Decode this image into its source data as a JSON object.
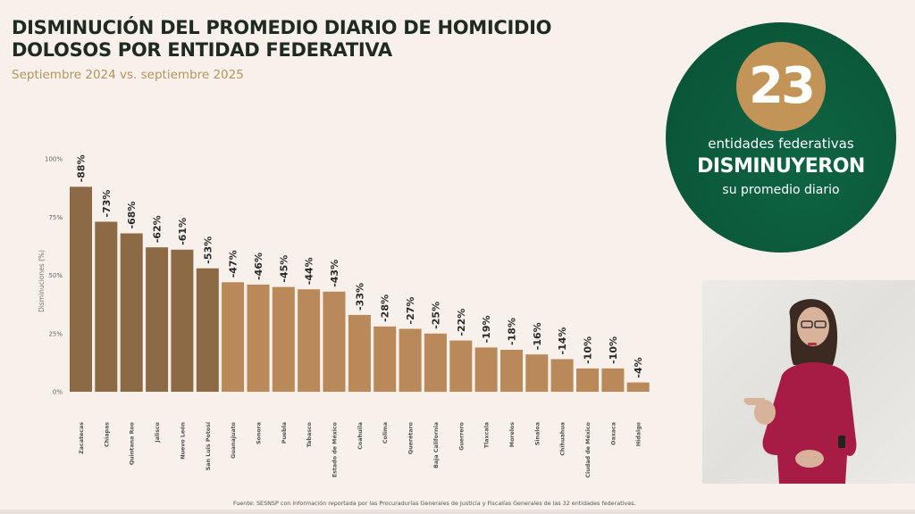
{
  "header": {
    "title": "DISMINUCIÓN DEL PROMEDIO DIARIO DE HOMICIDIO DOLOSOS POR ENTIDAD FEDERATIVA",
    "subtitle": "Septiembre 2024 vs. septiembre 2025"
  },
  "badge": {
    "number": "23",
    "line1": "entidades federativas",
    "line2": "DISMINUYERON",
    "line3": "su promedio diario"
  },
  "video": {
    "icon": "sign-language-interpreter"
  },
  "source": "Fuente: SESNSP con información reportada por las Procuradurías Generales de Justicia y Fiscalías Generales de las 32 entidades federativas.",
  "colors": {
    "dark_bar": "#8c6a45",
    "light_bar": "#b9895a",
    "badge_green": "#0b5a3b",
    "badge_gold": "#c29457",
    "title": "#1f2a22",
    "subtitle": "#b4955f"
  },
  "chart_data": {
    "type": "bar",
    "title": "",
    "xlabel": "",
    "ylabel": "Disminuciones (%)",
    "ylim": [
      0,
      100
    ],
    "yticks": [
      "0%",
      "25%",
      "50%",
      "75%",
      "100%"
    ],
    "ytick_values": [
      0,
      25,
      50,
      75,
      100
    ],
    "grid": false,
    "highlight_count": 6,
    "categories": [
      "Zacatecas",
      "Chiapas",
      "Quintana Roo",
      "Jalisco",
      "Nuevo León",
      "San Luis Potosí",
      "Guanajuato",
      "Sonora",
      "Puebla",
      "Tabasco",
      "Estado de México",
      "Coahuila",
      "Colima",
      "Querétaro",
      "Baja California",
      "Guerrero",
      "Tlaxcala",
      "Morelos",
      "Sinaloa",
      "Chihuahua",
      "Ciudad de México",
      "Oaxaca",
      "Hidalgo"
    ],
    "values": [
      88,
      73,
      68,
      62,
      61,
      53,
      47,
      46,
      45,
      44,
      43,
      33,
      28,
      27,
      25,
      22,
      19,
      18,
      16,
      14,
      10,
      10,
      4
    ],
    "labels": [
      "-88%",
      "-73%",
      "-68%",
      "-62%",
      "-61%",
      "-53%",
      "-47%",
      "-46%",
      "-45%",
      "-44%",
      "-43%",
      "-33%",
      "-28%",
      "-27%",
      "-25%",
      "-22%",
      "-19%",
      "-18%",
      "-16%",
      "-14%",
      "-10%",
      "-10%",
      "-4%"
    ]
  }
}
